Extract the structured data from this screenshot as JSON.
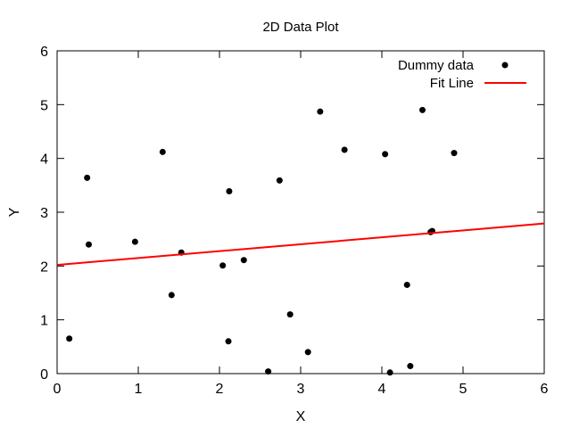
{
  "chart_data": {
    "type": "scatter",
    "title": "2D Data Plot",
    "xlabel": "X",
    "ylabel": "Y",
    "xlim": [
      0,
      6
    ],
    "ylim": [
      0,
      6
    ],
    "xticks": [
      "0",
      "1",
      "2",
      "3",
      "4",
      "5",
      "6"
    ],
    "yticks": [
      "0",
      "1",
      "2",
      "3",
      "4",
      "5",
      "6"
    ],
    "grid": false,
    "legend_position": "top-right",
    "series": [
      {
        "name": "Dummy data",
        "kind": "points",
        "color": "#000000",
        "points": [
          [
            0.15,
            0.65
          ],
          [
            0.37,
            3.64
          ],
          [
            0.39,
            2.4
          ],
          [
            0.96,
            2.45
          ],
          [
            1.3,
            4.12
          ],
          [
            1.41,
            1.46
          ],
          [
            1.53,
            2.25
          ],
          [
            2.04,
            2.01
          ],
          [
            2.11,
            0.6
          ],
          [
            2.12,
            3.39
          ],
          [
            2.3,
            2.11
          ],
          [
            2.6,
            0.04
          ],
          [
            2.74,
            3.59
          ],
          [
            2.87,
            1.1
          ],
          [
            3.09,
            0.4
          ],
          [
            3.24,
            4.87
          ],
          [
            3.54,
            4.16
          ],
          [
            4.04,
            4.08
          ],
          [
            4.1,
            0.02
          ],
          [
            4.31,
            1.65
          ],
          [
            4.35,
            0.14
          ],
          [
            4.5,
            4.9
          ],
          [
            4.6,
            2.63
          ],
          [
            4.62,
            2.65
          ],
          [
            4.89,
            4.1
          ]
        ]
      },
      {
        "name": "Fit Line",
        "kind": "line",
        "color": "#ff0000",
        "points": [
          [
            0,
            2.02
          ],
          [
            6,
            2.79
          ]
        ]
      }
    ]
  }
}
